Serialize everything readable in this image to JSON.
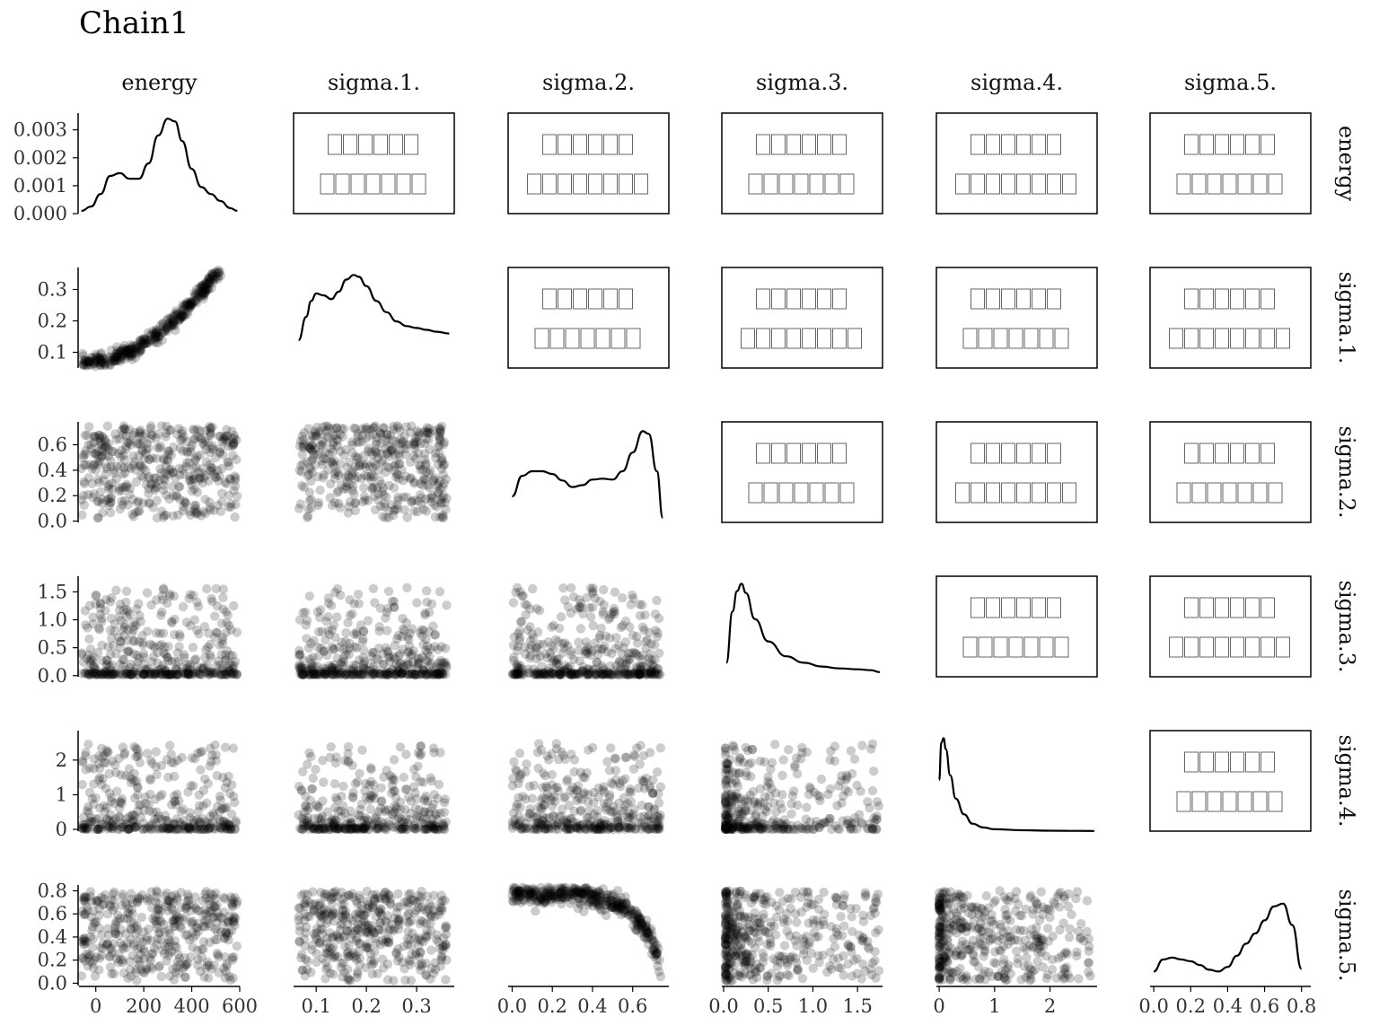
{
  "title": "Chain1",
  "chart_data": {
    "type": "scatter",
    "variables": [
      "energy",
      "sigma.1.",
      "sigma.2.",
      "sigma.3.",
      "sigma.4.",
      "sigma.5."
    ],
    "col_headers": [
      "energy",
      "sigma.1.",
      "sigma.2.",
      "sigma.3.",
      "sigma.4.",
      "sigma.5."
    ],
    "row_headers": [
      "energy",
      "sigma.1.",
      "sigma.2.",
      "sigma.3.",
      "sigma.4.",
      "sigma.5."
    ],
    "x_axes": [
      {
        "range": [
          -70,
          600
        ],
        "ticks": [
          0,
          200,
          400,
          600
        ],
        "labels": [
          "0",
          "200",
          "400",
          "600"
        ]
      },
      {
        "range": [
          0.055,
          0.375
        ],
        "ticks": [
          0.1,
          0.2,
          0.3
        ],
        "labels": [
          "0.1",
          "0.2",
          "0.3"
        ]
      },
      {
        "range": [
          -0.02,
          0.78
        ],
        "ticks": [
          0.0,
          0.2,
          0.4,
          0.6
        ],
        "labels": [
          "0.0",
          "0.2",
          "0.4",
          "0.6"
        ]
      },
      {
        "range": [
          -0.02,
          1.78
        ],
        "ticks": [
          0.0,
          0.5,
          1.0,
          1.5
        ],
        "labels": [
          "0.0",
          "0.5",
          "1.0",
          "1.5"
        ]
      },
      {
        "range": [
          -0.05,
          2.85
        ],
        "ticks": [
          0,
          1,
          2
        ],
        "labels": [
          "0",
          "1",
          "2"
        ]
      },
      {
        "range": [
          -0.02,
          0.85
        ],
        "ticks": [
          0.0,
          0.2,
          0.4,
          0.6,
          0.8
        ],
        "labels": [
          "0.0",
          "0.2",
          "0.4",
          "0.6",
          "0.8"
        ]
      }
    ],
    "y_axes": [
      {
        "range": [
          0,
          0.0036
        ],
        "ticks": [
          0.0,
          0.001,
          0.002,
          0.003
        ],
        "labels": [
          "0.000",
          "0.001",
          "0.002",
          "0.003"
        ]
      },
      {
        "range": [
          0.05,
          0.37
        ],
        "ticks": [
          0.1,
          0.2,
          0.3
        ],
        "labels": [
          "0.1",
          "0.2",
          "0.3"
        ]
      },
      {
        "range": [
          -0.01,
          0.78
        ],
        "ticks": [
          0.0,
          0.2,
          0.4,
          0.6
        ],
        "labels": [
          "0.0",
          "0.2",
          "0.4",
          "0.6"
        ]
      },
      {
        "range": [
          -0.02,
          1.78
        ],
        "ticks": [
          0.0,
          0.5,
          1.0,
          1.5
        ],
        "labels": [
          "0.0",
          "0.5",
          "1.0",
          "1.5"
        ]
      },
      {
        "range": [
          -0.05,
          2.85
        ],
        "ticks": [
          0,
          1,
          2
        ],
        "labels": [
          "0",
          "1",
          "2"
        ]
      },
      {
        "range": [
          -0.02,
          0.85
        ],
        "ticks": [
          0.0,
          0.2,
          0.4,
          0.6,
          0.8
        ],
        "labels": [
          "0.0",
          "0.2",
          "0.4",
          "0.6",
          "0.8"
        ]
      }
    ],
    "diagonal_densities": [
      {
        "variable": "energy",
        "x": [
          -60,
          -20,
          20,
          60,
          100,
          140,
          180,
          220,
          260,
          300,
          330,
          360,
          400,
          440,
          480,
          520,
          560,
          590
        ],
        "y": [
          0.0001,
          0.00025,
          0.0007,
          0.00135,
          0.00145,
          0.00125,
          0.00125,
          0.0018,
          0.0028,
          0.0034,
          0.0033,
          0.0026,
          0.0016,
          0.00095,
          0.0007,
          0.00045,
          0.0002,
          0.0001
        ]
      },
      {
        "variable": "sigma.1.",
        "x": [
          0.065,
          0.08,
          0.09,
          0.1,
          0.115,
          0.13,
          0.145,
          0.16,
          0.175,
          0.185,
          0.2,
          0.22,
          0.24,
          0.26,
          0.28,
          0.3,
          0.32,
          0.34,
          0.365
        ],
        "y": [
          0.3,
          0.55,
          0.72,
          0.8,
          0.78,
          0.74,
          0.82,
          0.95,
          1.0,
          0.98,
          0.88,
          0.72,
          0.6,
          0.5,
          0.45,
          0.43,
          0.41,
          0.39,
          0.37
        ]
      },
      {
        "variable": "sigma.2.",
        "x": [
          0.0,
          0.05,
          0.1,
          0.15,
          0.2,
          0.25,
          0.3,
          0.35,
          0.4,
          0.45,
          0.5,
          0.55,
          0.6,
          0.65,
          0.68,
          0.72,
          0.75
        ],
        "y": [
          0.28,
          0.5,
          0.55,
          0.55,
          0.52,
          0.45,
          0.38,
          0.4,
          0.46,
          0.47,
          0.46,
          0.55,
          0.75,
          0.98,
          0.95,
          0.55,
          0.05
        ]
      },
      {
        "variable": "sigma.3.",
        "x": [
          0.03,
          0.1,
          0.15,
          0.2,
          0.25,
          0.35,
          0.5,
          0.7,
          0.9,
          1.1,
          1.3,
          1.5,
          1.65,
          1.75
        ],
        "y": [
          0.15,
          0.7,
          0.92,
          1.0,
          0.9,
          0.62,
          0.38,
          0.22,
          0.15,
          0.11,
          0.09,
          0.08,
          0.07,
          0.05
        ]
      },
      {
        "variable": "sigma.4.",
        "x": [
          0.0,
          0.04,
          0.08,
          0.12,
          0.2,
          0.3,
          0.45,
          0.6,
          0.8,
          1.0,
          1.5,
          2.0,
          2.5,
          2.8
        ],
        "y": [
          0.55,
          0.95,
          1.0,
          0.88,
          0.6,
          0.35,
          0.18,
          0.08,
          0.04,
          0.02,
          0.01,
          0.005,
          0.003,
          0.002
        ]
      },
      {
        "variable": "sigma.5.",
        "x": [
          0.0,
          0.05,
          0.1,
          0.15,
          0.2,
          0.25,
          0.3,
          0.35,
          0.4,
          0.45,
          0.5,
          0.55,
          0.6,
          0.65,
          0.7,
          0.75,
          0.8
        ],
        "y": [
          0.15,
          0.28,
          0.3,
          0.28,
          0.26,
          0.22,
          0.17,
          0.15,
          0.2,
          0.32,
          0.45,
          0.56,
          0.7,
          0.85,
          0.88,
          0.65,
          0.18
        ]
      }
    ],
    "scatter_panels": [
      {
        "x_var": "energy",
        "y_var": "sigma.1.",
        "pattern": "curve",
        "params": [
          0.063,
          8.8e-07,
          2,
          0.012
        ]
      },
      {
        "x_var": "energy",
        "y_var": "sigma.2.",
        "pattern": "spread",
        "params": [
          -60,
          590,
          0.02,
          0.75
        ]
      },
      {
        "x_var": "sigma.1.",
        "y_var": "sigma.2.",
        "pattern": "spread",
        "params": [
          0.065,
          0.36,
          0.02,
          0.75
        ]
      },
      {
        "x_var": "energy",
        "y_var": "sigma.3.",
        "pattern": "skew",
        "params": [
          -60,
          590,
          0.02,
          1.75
        ]
      },
      {
        "x_var": "sigma.1.",
        "y_var": "sigma.3.",
        "pattern": "skew",
        "params": [
          0.065,
          0.36,
          0.02,
          1.75
        ]
      },
      {
        "x_var": "sigma.2.",
        "y_var": "sigma.3.",
        "pattern": "skew",
        "params": [
          0.0,
          0.74,
          0.02,
          1.75
        ]
      },
      {
        "x_var": "energy",
        "y_var": "sigma.4.",
        "pattern": "skew",
        "params": [
          -60,
          590,
          0.0,
          2.75
        ]
      },
      {
        "x_var": "sigma.1.",
        "y_var": "sigma.4.",
        "pattern": "skew",
        "params": [
          0.065,
          0.36,
          0.0,
          2.75
        ]
      },
      {
        "x_var": "sigma.2.",
        "y_var": "sigma.4.",
        "pattern": "skew",
        "params": [
          0.0,
          0.74,
          0.0,
          2.75
        ]
      },
      {
        "x_var": "sigma.3.",
        "y_var": "sigma.4.",
        "pattern": "skewboth",
        "params": [
          0.02,
          1.75,
          0.0,
          2.75
        ]
      },
      {
        "x_var": "energy",
        "y_var": "sigma.5.",
        "pattern": "spread",
        "params": [
          -60,
          590,
          0.02,
          0.8
        ]
      },
      {
        "x_var": "sigma.1.",
        "y_var": "sigma.5.",
        "pattern": "spread",
        "params": [
          0.065,
          0.36,
          0.02,
          0.8
        ]
      },
      {
        "x_var": "sigma.2.",
        "y_var": "sigma.5.",
        "pattern": "arc",
        "params": [
          0.0,
          0.74,
          0.78,
          0.05
        ]
      },
      {
        "x_var": "sigma.3.",
        "y_var": "sigma.5.",
        "pattern": "skewx",
        "params": [
          0.02,
          1.75,
          0.02,
          0.8
        ]
      },
      {
        "x_var": "sigma.4.",
        "y_var": "sigma.5.",
        "pattern": "skewx",
        "params": [
          0.0,
          2.75,
          0.02,
          0.8
        ]
      }
    ],
    "correlation_panels_note": "upper-triangle panels contain unreadable boxed glyphs (missing-font text)"
  }
}
